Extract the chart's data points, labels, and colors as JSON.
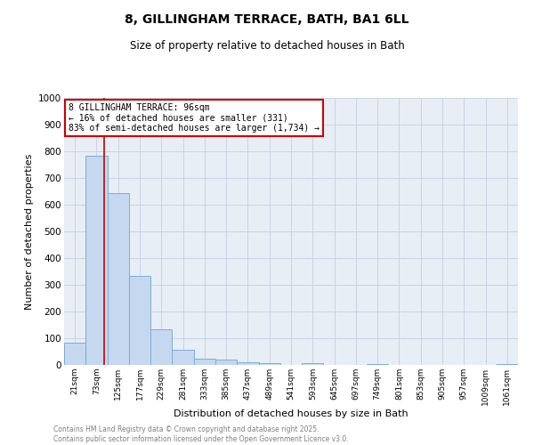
{
  "title_line1": "8, GILLINGHAM TERRACE, BATH, BA1 6LL",
  "title_line2": "Size of property relative to detached houses in Bath",
  "xlabel": "Distribution of detached houses by size in Bath",
  "ylabel": "Number of detached properties",
  "bar_labels": [
    "21sqm",
    "73sqm",
    "125sqm",
    "177sqm",
    "229sqm",
    "281sqm",
    "333sqm",
    "385sqm",
    "437sqm",
    "489sqm",
    "541sqm",
    "593sqm",
    "645sqm",
    "697sqm",
    "749sqm",
    "801sqm",
    "853sqm",
    "905sqm",
    "957sqm",
    "1009sqm",
    "1061sqm"
  ],
  "bar_values": [
    83,
    783,
    645,
    333,
    133,
    57,
    25,
    20,
    10,
    7,
    0,
    8,
    0,
    0,
    5,
    0,
    0,
    0,
    0,
    0,
    5
  ],
  "bar_color": "#c5d8ef",
  "bar_edge_color": "#7aaed4",
  "grid_color": "#c8d4e3",
  "background_color": "#e8eef6",
  "red_line_x": 1.37,
  "annotation_text": "8 GILLINGHAM TERRACE: 96sqm\n← 16% of detached houses are smaller (331)\n83% of semi-detached houses are larger (1,734) →",
  "annotation_box_color": "#cc0000",
  "ylim": [
    0,
    1000
  ],
  "yticks": [
    0,
    100,
    200,
    300,
    400,
    500,
    600,
    700,
    800,
    900,
    1000
  ],
  "footer_line1": "Contains HM Land Registry data © Crown copyright and database right 2025.",
  "footer_line2": "Contains public sector information licensed under the Open Government Licence v3.0."
}
